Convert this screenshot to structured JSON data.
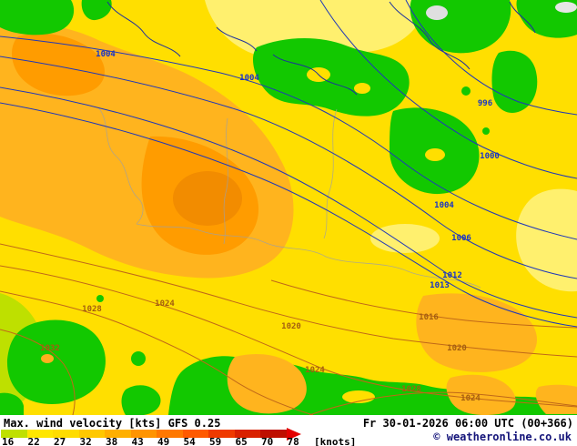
{
  "map": {
    "isobar_labels_blue": [
      {
        "value": "1004"
      },
      {
        "value": "1004"
      },
      {
        "value": "996"
      },
      {
        "value": "1000"
      },
      {
        "value": "1004"
      },
      {
        "value": "1006"
      },
      {
        "value": "1012"
      },
      {
        "value": "1013"
      }
    ],
    "isobar_labels_orange": [
      {
        "value": "1028"
      },
      {
        "value": "1032"
      },
      {
        "value": "1024"
      },
      {
        "value": "1020"
      },
      {
        "value": "1016"
      },
      {
        "value": "1020"
      },
      {
        "value": "1024"
      },
      {
        "value": "1028"
      },
      {
        "value": "1024"
      }
    ],
    "colors": {
      "yellow": "#FFDF00",
      "light_yellow": "#FFF06E",
      "orange": "#FFB41E",
      "dark_orange": "#FF9C00",
      "darkest_orange": "#F28C00",
      "green": "#12C800",
      "pale_green": "#BEE000",
      "gray_patch": "#DFDFDF",
      "isoline_blue": "#2038B8",
      "isoline_orange": "#C06818",
      "border_gray": "#A0A0A0"
    }
  },
  "legend": {
    "title": "Max. wind velocity [kts] GFS 0.25",
    "datetime": "Fr 30-01-2026 06:00 UTC (00+366)",
    "copyright": "© weatheronline.co.uk",
    "values": [
      "16",
      "22",
      "27",
      "32",
      "38",
      "43",
      "49",
      "54",
      "59",
      "65",
      "70",
      "78"
    ],
    "unit": "[knots]",
    "segment_colors": [
      "#BFE000",
      "#FFE600",
      "#FFDC00",
      "#FFC800",
      "#FFAF00",
      "#FF9400",
      "#FF7800",
      "#FF5A00",
      "#EF3A00",
      "#D92100",
      "#BE0E00"
    ],
    "arrow_color": "#E30000"
  }
}
